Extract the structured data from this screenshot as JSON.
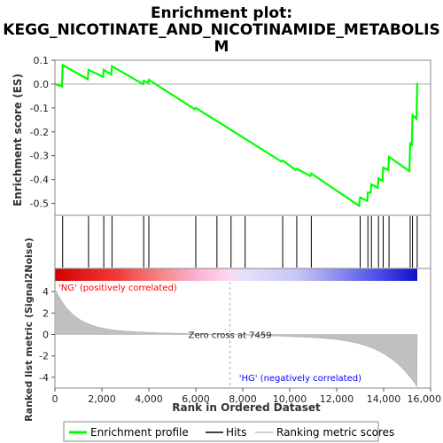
{
  "chart_data": {
    "type": "line",
    "title_lines": [
      "Enrichment plot:",
      "KEGG_NICOTINATE_AND_NICOTINAMIDE_METABOLIS",
      "M"
    ],
    "xlabel": "Rank in Ordered Dataset",
    "ylabel_top": "Enrichment score (ES)",
    "ylabel_bottom": "Ranked list metric (Signal2Noise)",
    "xlim": [
      0,
      16000
    ],
    "ylim_top": [
      -0.55,
      0.1
    ],
    "ylim_bottom": [
      -5,
      5
    ],
    "x_ticks": [
      0,
      2000,
      4000,
      6000,
      8000,
      10000,
      12000,
      14000,
      16000
    ],
    "x_tick_labels": [
      "0",
      "2,000",
      "4,000",
      "6,000",
      "8,000",
      "10,000",
      "12,000",
      "14,000",
      "16,000"
    ],
    "y_ticks_top": [
      0.1,
      0.0,
      -0.1,
      -0.2,
      -0.3,
      -0.4,
      -0.5
    ],
    "y_tick_labels_top": [
      "0.1",
      "0.0",
      "-0.1",
      "-0.2",
      "-0.3",
      "-0.4",
      "-0.5"
    ],
    "y_ticks_bottom": [
      4,
      2,
      0,
      -2,
      -4
    ],
    "y_tick_labels_bottom": [
      "4",
      "2",
      "0",
      "-2",
      "-4"
    ],
    "es_series": {
      "name": "Enrichment profile",
      "color": "#00ff00",
      "points": [
        [
          0,
          0.0
        ],
        [
          300,
          -0.01
        ],
        [
          330,
          0.08
        ],
        [
          1400,
          0.02
        ],
        [
          1430,
          0.06
        ],
        [
          2050,
          0.03
        ],
        [
          2080,
          0.06
        ],
        [
          2400,
          0.04
        ],
        [
          2430,
          0.075
        ],
        [
          3750,
          0.0
        ],
        [
          3780,
          0.013
        ],
        [
          3980,
          0.005
        ],
        [
          4000,
          0.018
        ],
        [
          5950,
          -0.105
        ],
        [
          6000,
          -0.1
        ],
        [
          9650,
          -0.325
        ],
        [
          9700,
          -0.32
        ],
        [
          10250,
          -0.36
        ],
        [
          10300,
          -0.355
        ],
        [
          10880,
          -0.385
        ],
        [
          10920,
          -0.375
        ],
        [
          12950,
          -0.51
        ],
        [
          13000,
          -0.475
        ],
        [
          13300,
          -0.49
        ],
        [
          13330,
          -0.455
        ],
        [
          13450,
          -0.455
        ],
        [
          13480,
          -0.42
        ],
        [
          13750,
          -0.435
        ],
        [
          13780,
          -0.395
        ],
        [
          13950,
          -0.405
        ],
        [
          13980,
          -0.35
        ],
        [
          14200,
          -0.36
        ],
        [
          14230,
          -0.305
        ],
        [
          15100,
          -0.365
        ],
        [
          15130,
          -0.25
        ],
        [
          15200,
          -0.255
        ],
        [
          15230,
          -0.13
        ],
        [
          15400,
          -0.145
        ],
        [
          15430,
          0.005
        ]
      ]
    },
    "hits": [
      330,
      1430,
      2080,
      2430,
      3780,
      4000,
      6000,
      6900,
      7500,
      8100,
      9700,
      10300,
      10920,
      13000,
      13330,
      13480,
      13780,
      13980,
      14230,
      15130,
      15230,
      15430
    ],
    "hits_label": "Hits",
    "ranking_label": "Ranking metric scores",
    "ranking_color": "#c0c0c0",
    "ranked_metric": {
      "start": 4.3,
      "end": -4.9,
      "zero_cross": 7459
    },
    "zero_cross_text": "Zero cross at 7459",
    "pos_label": "'NG' (positively correlated)",
    "neg_label": "'HG' (negatively correlated)",
    "pos_color": "#ff0000",
    "neg_color": "#0000ff",
    "line_color": "#00ff00"
  }
}
